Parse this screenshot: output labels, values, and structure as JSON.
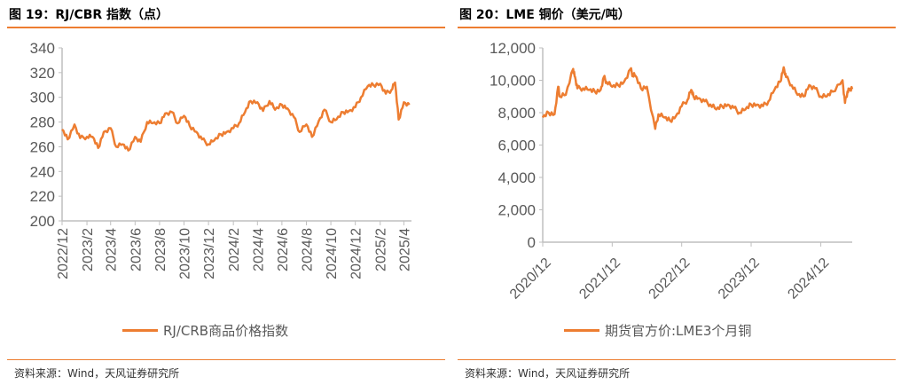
{
  "colors": {
    "series": "#ED7D31",
    "axis": "#BFBFBF",
    "tick_text": "#595959",
    "rule": "#ED7D31"
  },
  "chart_data": [
    {
      "type": "line",
      "title": "图 19：RJ/CBR 指数（点）",
      "source": "资料来源：Wind，天风证券研究所",
      "ylim": [
        200,
        340
      ],
      "yticks": [
        "200",
        "220",
        "240",
        "260",
        "280",
        "300",
        "320",
        "340"
      ],
      "xlim": [
        "2022-12-01",
        "2025-04-20"
      ],
      "xticks": [
        "2022/12",
        "2023/2",
        "2023/4",
        "2023/6",
        "2023/8",
        "2023/10",
        "2023/12",
        "2024/2",
        "2024/4",
        "2024/6",
        "2024/8",
        "2024/10",
        "2024/12",
        "2025/2",
        "2025/4"
      ],
      "grid": false,
      "legend": "bottom",
      "series": [
        {
          "name": "RJ/CRB商品价格指数",
          "points": [
            [
              "2022-12-01",
              274
            ],
            [
              "2022-12-15",
              266
            ],
            [
              "2023-01-01",
              278
            ],
            [
              "2023-01-15",
              267
            ],
            [
              "2023-02-01",
              268
            ],
            [
              "2023-02-15",
              268
            ],
            [
              "2023-03-01",
              259
            ],
            [
              "2023-03-15",
              272
            ],
            [
              "2023-04-01",
              275
            ],
            [
              "2023-04-15",
              260
            ],
            [
              "2023-05-01",
              262
            ],
            [
              "2023-05-15",
              257
            ],
            [
              "2023-06-01",
              268
            ],
            [
              "2023-06-15",
              264
            ],
            [
              "2023-07-01",
              280
            ],
            [
              "2023-07-15",
              279
            ],
            [
              "2023-08-01",
              279
            ],
            [
              "2023-08-15",
              287
            ],
            [
              "2023-09-01",
              288
            ],
            [
              "2023-09-15",
              279
            ],
            [
              "2023-10-01",
              285
            ],
            [
              "2023-10-15",
              277
            ],
            [
              "2023-11-01",
              272
            ],
            [
              "2023-11-15",
              266
            ],
            [
              "2023-12-01",
              262
            ],
            [
              "2023-12-15",
              265
            ],
            [
              "2024-01-01",
              270
            ],
            [
              "2024-01-15",
              272
            ],
            [
              "2024-02-01",
              275
            ],
            [
              "2024-02-15",
              279
            ],
            [
              "2024-03-01",
              288
            ],
            [
              "2024-03-15",
              297
            ],
            [
              "2024-04-01",
              296
            ],
            [
              "2024-04-15",
              289
            ],
            [
              "2024-05-01",
              297
            ],
            [
              "2024-05-15",
              290
            ],
            [
              "2024-06-01",
              294
            ],
            [
              "2024-06-15",
              291
            ],
            [
              "2024-07-01",
              284
            ],
            [
              "2024-07-15",
              272
            ],
            [
              "2024-08-01",
              278
            ],
            [
              "2024-08-15",
              268
            ],
            [
              "2024-09-01",
              281
            ],
            [
              "2024-09-15",
              290
            ],
            [
              "2024-10-01",
              280
            ],
            [
              "2024-10-15",
              282
            ],
            [
              "2024-11-01",
              288
            ],
            [
              "2024-11-15",
              289
            ],
            [
              "2024-12-01",
              292
            ],
            [
              "2024-12-15",
              300
            ],
            [
              "2025-01-01",
              309
            ],
            [
              "2025-01-15",
              310
            ],
            [
              "2025-02-01",
              311
            ],
            [
              "2025-02-15",
              303
            ],
            [
              "2025-03-01",
              306
            ],
            [
              "2025-03-10",
              312
            ],
            [
              "2025-03-19",
              282
            ],
            [
              "2025-04-01",
              296
            ],
            [
              "2025-04-15",
              294
            ]
          ]
        }
      ]
    },
    {
      "type": "line",
      "title": "图 20：LME 铜价（美元/吨）",
      "source": "资料来源：Wind，天风证券研究所",
      "ylim": [
        0,
        12000
      ],
      "yticks": [
        "0",
        "2,000",
        "4,000",
        "6,000",
        "8,000",
        "10,000",
        "12,000"
      ],
      "xlim": [
        "2020-12-01",
        "2025-05-15"
      ],
      "xticks": [
        "2020/12",
        "2021/12",
        "2022/12",
        "2023/12",
        "2024/12"
      ],
      "grid": false,
      "legend": "bottom",
      "series": [
        {
          "name": "期货官方价:LME3个月铜",
          "points": [
            [
              "2020-12-01",
              7700
            ],
            [
              "2021-01-01",
              8000
            ],
            [
              "2021-02-01",
              7900
            ],
            [
              "2021-02-20",
              9600
            ],
            [
              "2021-03-01",
              9000
            ],
            [
              "2021-04-01",
              9100
            ],
            [
              "2021-05-10",
              10700
            ],
            [
              "2021-05-20",
              10200
            ],
            [
              "2021-06-01",
              9500
            ],
            [
              "2021-07-01",
              9500
            ],
            [
              "2021-08-01",
              9400
            ],
            [
              "2021-09-01",
              9300
            ],
            [
              "2021-10-01",
              9400
            ],
            [
              "2021-10-18",
              10200
            ],
            [
              "2021-11-01",
              9900
            ],
            [
              "2021-12-01",
              9600
            ],
            [
              "2022-01-01",
              9700
            ],
            [
              "2022-02-01",
              9900
            ],
            [
              "2022-03-07",
              10700
            ],
            [
              "2022-03-20",
              10300
            ],
            [
              "2022-04-01",
              10300
            ],
            [
              "2022-05-01",
              9500
            ],
            [
              "2022-06-01",
              9600
            ],
            [
              "2022-07-15",
              7000
            ],
            [
              "2022-08-01",
              7900
            ],
            [
              "2022-09-01",
              7700
            ],
            [
              "2022-10-01",
              7500
            ],
            [
              "2022-11-01",
              7800
            ],
            [
              "2022-12-01",
              8400
            ],
            [
              "2023-01-01",
              8800
            ],
            [
              "2023-01-20",
              9400
            ],
            [
              "2023-02-01",
              9000
            ],
            [
              "2023-03-01",
              8900
            ],
            [
              "2023-04-01",
              8700
            ],
            [
              "2023-05-01",
              8500
            ],
            [
              "2023-06-01",
              8200
            ],
            [
              "2023-07-01",
              8400
            ],
            [
              "2023-08-01",
              8500
            ],
            [
              "2023-09-01",
              8300
            ],
            [
              "2023-10-01",
              8000
            ],
            [
              "2023-11-01",
              8200
            ],
            [
              "2023-12-01",
              8500
            ],
            [
              "2024-01-01",
              8500
            ],
            [
              "2024-02-01",
              8400
            ],
            [
              "2024-03-01",
              8700
            ],
            [
              "2024-04-01",
              9400
            ],
            [
              "2024-05-01",
              9900
            ],
            [
              "2024-05-20",
              10800
            ],
            [
              "2024-06-01",
              10200
            ],
            [
              "2024-07-01",
              9700
            ],
            [
              "2024-08-01",
              9100
            ],
            [
              "2024-09-01",
              9000
            ],
            [
              "2024-10-01",
              9700
            ],
            [
              "2024-11-01",
              9500
            ],
            [
              "2024-12-01",
              9000
            ],
            [
              "2025-01-01",
              9000
            ],
            [
              "2025-02-01",
              9300
            ],
            [
              "2025-03-25",
              10000
            ],
            [
              "2025-04-07",
              8600
            ],
            [
              "2025-04-20",
              9300
            ],
            [
              "2025-05-01",
              9400
            ],
            [
              "2025-05-15",
              9450
            ]
          ]
        }
      ]
    }
  ]
}
